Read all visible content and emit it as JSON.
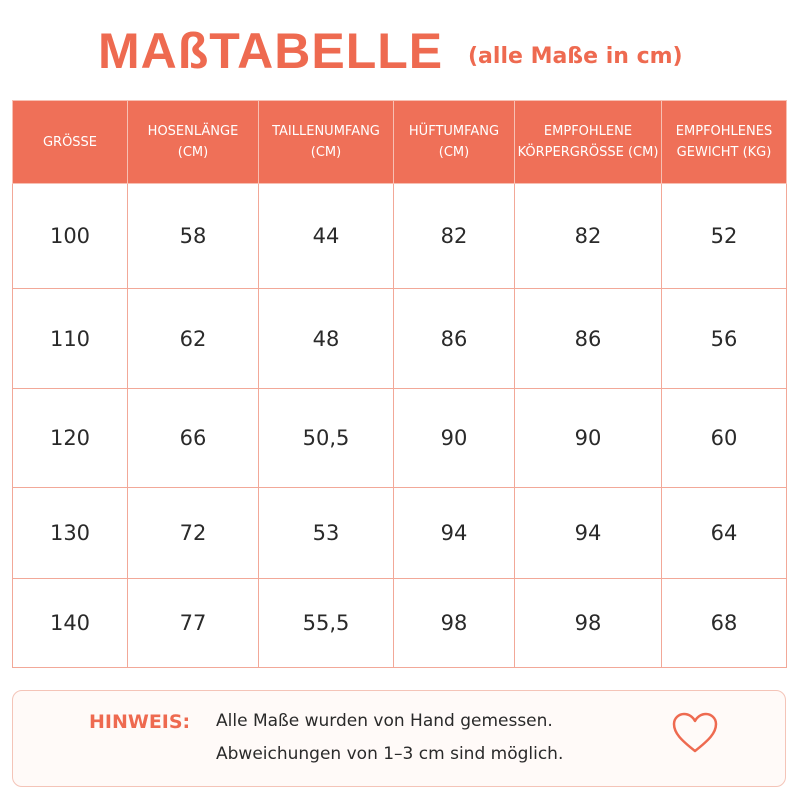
{
  "header": {
    "title": "MAßTABELLE",
    "subtitle": "(alle Maße in cm)"
  },
  "table": {
    "columns": [
      [
        "GRÖSSE"
      ],
      [
        "HOSENLÄNGE",
        "(CM)"
      ],
      [
        "TAILLENUMFANG",
        "(CM)"
      ],
      [
        "HÜFTUMFANG",
        "(CM)"
      ],
      [
        "EMPFOHLENE",
        "KÖRPERGRÖSSE (CM)"
      ],
      [
        "EMPFOHLENES",
        "GEWICHT (KG)"
      ]
    ],
    "rows": [
      [
        "100",
        "58",
        "44",
        "82",
        "82",
        "52"
      ],
      [
        "110",
        "62",
        "48",
        "86",
        "86",
        "56"
      ],
      [
        "120",
        "66",
        "50,5",
        "90",
        "90",
        "60"
      ],
      [
        "130",
        "72",
        "53",
        "94",
        "94",
        "64"
      ],
      [
        "140",
        "77",
        "55,5",
        "98",
        "98",
        "68"
      ]
    ]
  },
  "note": {
    "label": "HINWEIS:",
    "lines": [
      "Alle Maße wurden von Hand gemessen.",
      "Abweichungen von 1–3 cm sind möglich."
    ]
  }
}
